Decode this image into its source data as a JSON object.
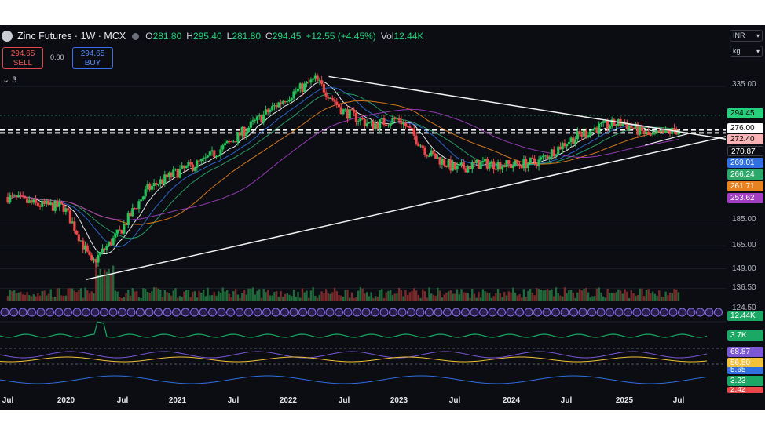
{
  "header": {
    "title": "Zinc Futures · 1W · MCX",
    "ohlc": [
      {
        "key": "O",
        "value": "281.80"
      },
      {
        "key": "H",
        "value": "295.40"
      },
      {
        "key": "L",
        "value": "281.80"
      },
      {
        "key": "C",
        "value": "294.45"
      }
    ],
    "change": "+12.55 (+4.45%)",
    "vol_label": "Vol",
    "vol_value": "12.44K",
    "sell_price": "294.65",
    "sell_label": "SELL",
    "spread": "0.00",
    "buy_price": "294.65",
    "buy_label": "BUY",
    "indicators_toggle": "3"
  },
  "units": {
    "currency": "INR",
    "weight": "kg"
  },
  "colors": {
    "background": "#0b0d12",
    "up": "#26c25a",
    "down": "#ef4848",
    "accent_green": "#26d07c",
    "trendline": "#f2f2f2"
  },
  "chart_data": {
    "type": "candlestick",
    "interval": "1W",
    "xlabels": [
      "Jul",
      "2020",
      "Jul",
      "2021",
      "Jul",
      "2022",
      "Jul",
      "2023",
      "Jul",
      "2024",
      "Jul",
      "2025",
      "Jul"
    ],
    "y_ticks": [
      "335.00",
      "185.00",
      "165.00",
      "149.00",
      "136.50",
      "124.50"
    ],
    "price_tags": [
      {
        "label": "294.45",
        "color": "#26d07c",
        "text": "#000000"
      },
      {
        "label": "276.00",
        "color": "#ffffff",
        "text": "#000000"
      },
      {
        "label": "272.40",
        "color": "#f7b3b3",
        "text": "#000000"
      },
      {
        "label": "270.87",
        "color": "#0b0d12",
        "text": "#ffffff"
      },
      {
        "label": "269.01",
        "color": "#2f6fe0",
        "text": "#ffffff"
      },
      {
        "label": "266.24",
        "color": "#2ba86a",
        "text": "#ffffff"
      },
      {
        "label": "261.71",
        "color": "#e8821f",
        "text": "#ffffff"
      },
      {
        "label": "253.62",
        "color": "#a23ec2",
        "text": "#ffffff"
      }
    ],
    "volume_tag": "12.44K",
    "oscillator_tags": [
      {
        "label": "3.7K",
        "color": "#1aa864"
      },
      {
        "label": "68.87",
        "color": "#7b57d6"
      },
      {
        "label": "56.50",
        "color": "#f2c23a"
      },
      {
        "label": "5.65",
        "color": "#2f6fe0"
      },
      {
        "label": "3.23",
        "color": "#1aa864"
      },
      {
        "label": "2.42",
        "color": "#e84848"
      }
    ],
    "series": [
      {
        "name": "Close",
        "x": [
          "2019-07",
          "2019-10",
          "2020-01",
          "2020-04",
          "2020-07",
          "2020-10",
          "2021-01",
          "2021-04",
          "2021-07",
          "2021-10",
          "2022-01",
          "2022-04",
          "2022-07",
          "2022-10",
          "2023-01",
          "2023-04",
          "2023-07",
          "2023-10",
          "2024-01",
          "2024-04",
          "2024-07",
          "2024-10",
          "2025-01",
          "2025-04",
          "2025-07",
          "2025-09"
        ],
        "y": [
          205,
          198,
          196,
          152,
          175,
          212,
          228,
          240,
          262,
          290,
          320,
          345,
          300,
          282,
          290,
          250,
          232,
          238,
          236,
          240,
          262,
          278,
          285,
          268,
          276,
          294.45
        ]
      }
    ]
  }
}
